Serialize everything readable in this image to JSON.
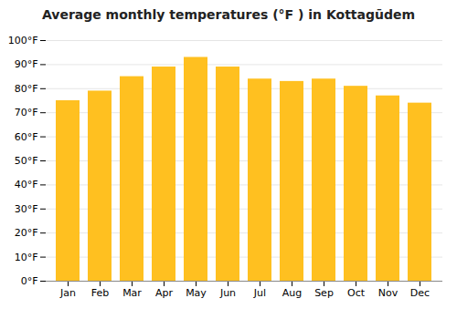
{
  "chart_data": {
    "type": "bar",
    "title": "Average monthly temperatures (°F ) in Kottagūdem",
    "categories": [
      "Jan",
      "Feb",
      "Mar",
      "Apr",
      "May",
      "Jun",
      "Jul",
      "Aug",
      "Sep",
      "Oct",
      "Nov",
      "Dec"
    ],
    "values": [
      75,
      79,
      85,
      89,
      93,
      89,
      84,
      83,
      84,
      81,
      77,
      74
    ],
    "color": "#FFC020",
    "ylim": [
      0,
      100
    ],
    "yticks": [
      {
        "value": 0,
        "label": "0°F"
      },
      {
        "value": 10,
        "label": "10°F"
      },
      {
        "value": 20,
        "label": "20°F"
      },
      {
        "value": 30,
        "label": "30°F"
      },
      {
        "value": 40,
        "label": "40°F"
      },
      {
        "value": 50,
        "label": "50°F"
      },
      {
        "value": 60,
        "label": "60°F"
      },
      {
        "value": 70,
        "label": "70°F"
      },
      {
        "value": 80,
        "label": "80°F"
      },
      {
        "value": 90,
        "label": "90°F"
      },
      {
        "value": 100,
        "label": "100°F"
      }
    ],
    "grid": true
  }
}
